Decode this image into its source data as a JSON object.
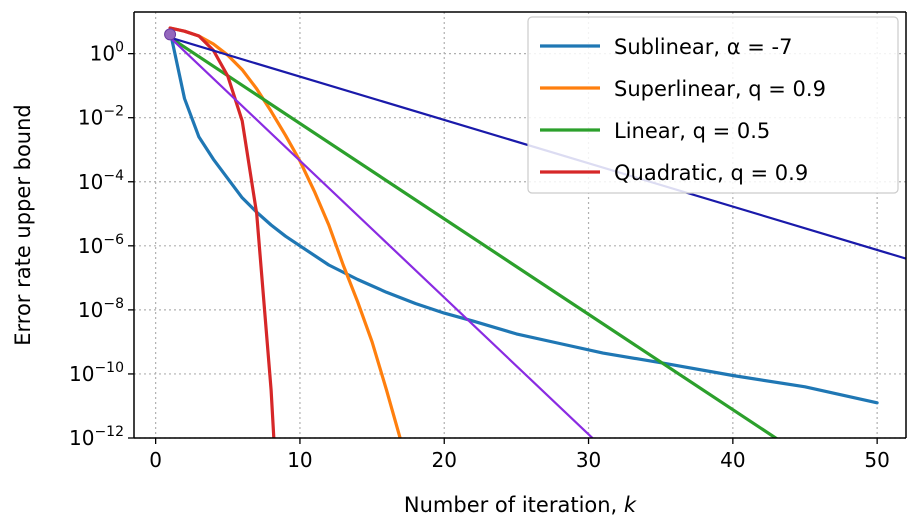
{
  "chart_data": {
    "type": "line",
    "title": "",
    "xlabel": "Number of iteration, ",
    "xlabel_italic": "k",
    "ylabel": "Error rate upper bound",
    "xlim": [
      -1.5,
      52
    ],
    "ylim_log10": [
      -12,
      1.3
    ],
    "y_scale": "log",
    "grid": true,
    "legend_position": "top-right",
    "x_ticks": [
      0,
      10,
      20,
      30,
      40,
      50
    ],
    "y_ticks": [
      {
        "base": "10",
        "exp": "0",
        "value": 0
      },
      {
        "base": "10",
        "exp": "−2",
        "value": -2
      },
      {
        "base": "10",
        "exp": "−4",
        "value": -4
      },
      {
        "base": "10",
        "exp": "−6",
        "value": -6
      },
      {
        "base": "10",
        "exp": "−8",
        "value": -8
      },
      {
        "base": "10",
        "exp": "−10",
        "value": -10
      },
      {
        "base": "10",
        "exp": "−12",
        "value": -12
      }
    ],
    "series": [
      {
        "name": "Sublinear, α = -7",
        "color": "#1f77b4",
        "width": 3.2,
        "legend": true,
        "points": [
          [
            1,
            0.7
          ],
          [
            2,
            -1.4
          ],
          [
            3,
            -2.6
          ],
          [
            4,
            -3.3
          ],
          [
            5,
            -3.9
          ],
          [
            6,
            -4.5
          ],
          [
            7,
            -4.95
          ],
          [
            8,
            -5.35
          ],
          [
            9,
            -5.7
          ],
          [
            10,
            -6
          ],
          [
            12,
            -6.6
          ],
          [
            14,
            -7.05
          ],
          [
            16,
            -7.45
          ],
          [
            18,
            -7.8
          ],
          [
            20,
            -8.1
          ],
          [
            22,
            -8.35
          ],
          [
            25,
            -8.75
          ],
          [
            28,
            -9.05
          ],
          [
            31,
            -9.35
          ],
          [
            35,
            -9.65
          ],
          [
            40,
            -10.05
          ],
          [
            45,
            -10.4
          ],
          [
            50,
            -10.9
          ]
        ]
      },
      {
        "name": "Superlinear, q = 0.9",
        "color": "#ff7f0e",
        "width": 3.2,
        "legend": true,
        "points": [
          [
            1,
            0.8
          ],
          [
            2,
            0.7
          ],
          [
            3,
            0.55
          ],
          [
            4,
            0.3
          ],
          [
            5,
            -0.05
          ],
          [
            6,
            -0.5
          ],
          [
            7,
            -1.1
          ],
          [
            8,
            -1.8
          ],
          [
            9,
            -2.55
          ],
          [
            10,
            -3.35
          ],
          [
            11,
            -4.3
          ],
          [
            12,
            -5.35
          ],
          [
            13,
            -6.6
          ],
          [
            14,
            -7.75
          ],
          [
            15,
            -9
          ],
          [
            16,
            -10.5
          ],
          [
            17,
            -12.1
          ]
        ]
      },
      {
        "name": "Linear, q = 0.5",
        "color": "#2ca02c",
        "width": 3.2,
        "legend": true,
        "points": [
          [
            1,
            0.5
          ],
          [
            43.3,
            -12.1
          ]
        ]
      },
      {
        "name": "Quadratic, q = 0.9",
        "color": "#d62728",
        "width": 3.2,
        "legend": true,
        "points": [
          [
            1,
            0.8
          ],
          [
            2,
            0.7
          ],
          [
            3,
            0.55
          ],
          [
            4,
            0.1
          ],
          [
            5,
            -0.7
          ],
          [
            6,
            -2.1
          ],
          [
            7,
            -5
          ],
          [
            8,
            -10.5
          ],
          [
            8.2,
            -12.1
          ]
        ]
      },
      {
        "name": "",
        "color": "#1a1aaa",
        "width": 2.2,
        "legend": false,
        "points": [
          [
            1,
            0.5
          ],
          [
            52,
            -6.4
          ]
        ]
      },
      {
        "name": "",
        "color": "#8a2be2",
        "width": 2.2,
        "legend": false,
        "points": [
          [
            1,
            0.5
          ],
          [
            30.5,
            -12.1
          ]
        ]
      }
    ]
  }
}
